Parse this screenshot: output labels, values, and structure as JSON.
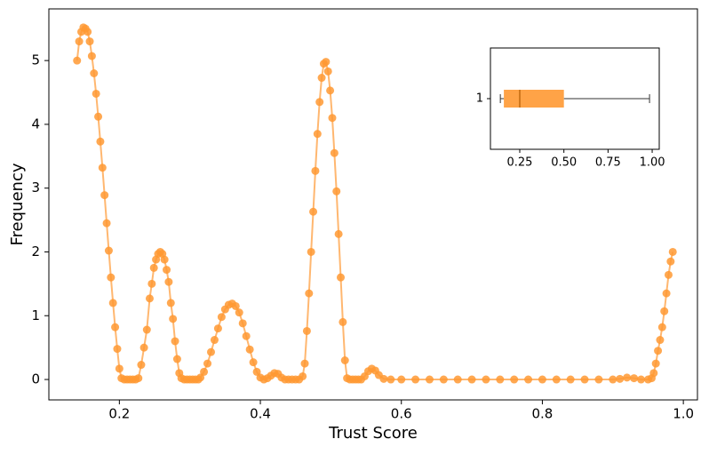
{
  "chart_data": [
    {
      "type": "line",
      "xlabel": "Trust Score",
      "ylabel": "Frequency",
      "color": "#ff9933",
      "x": [
        0.14,
        0.143,
        0.146,
        0.149,
        0.152,
        0.155,
        0.158,
        0.161,
        0.164,
        0.167,
        0.17,
        0.173,
        0.176,
        0.179,
        0.182,
        0.185,
        0.188,
        0.191,
        0.194,
        0.197,
        0.2,
        0.203,
        0.207,
        0.211,
        0.215,
        0.219,
        0.223,
        0.227,
        0.231,
        0.235,
        0.239,
        0.243,
        0.246,
        0.249,
        0.252,
        0.255,
        0.258,
        0.261,
        0.264,
        0.267,
        0.27,
        0.273,
        0.276,
        0.279,
        0.282,
        0.285,
        0.288,
        0.292,
        0.296,
        0.3,
        0.304,
        0.308,
        0.312,
        0.315,
        0.32,
        0.325,
        0.33,
        0.335,
        0.34,
        0.345,
        0.35,
        0.355,
        0.36,
        0.365,
        0.37,
        0.375,
        0.38,
        0.385,
        0.39,
        0.395,
        0.4,
        0.405,
        0.41,
        0.415,
        0.42,
        0.425,
        0.43,
        0.435,
        0.44,
        0.445,
        0.45,
        0.455,
        0.46,
        0.463,
        0.466,
        0.469,
        0.472,
        0.475,
        0.478,
        0.481,
        0.484,
        0.487,
        0.49,
        0.493,
        0.496,
        0.499,
        0.502,
        0.505,
        0.508,
        0.511,
        0.514,
        0.517,
        0.52,
        0.523,
        0.527,
        0.531,
        0.535,
        0.539,
        0.543,
        0.548,
        0.553,
        0.558,
        0.563,
        0.568,
        0.575,
        0.585,
        0.6,
        0.62,
        0.64,
        0.66,
        0.68,
        0.7,
        0.72,
        0.74,
        0.76,
        0.78,
        0.8,
        0.82,
        0.84,
        0.86,
        0.88,
        0.9,
        0.91,
        0.92,
        0.93,
        0.94,
        0.95,
        0.955,
        0.958,
        0.961,
        0.964,
        0.967,
        0.97,
        0.973,
        0.976,
        0.979,
        0.982,
        0.985
      ],
      "values": [
        5.0,
        5.3,
        5.45,
        5.52,
        5.5,
        5.45,
        5.3,
        5.07,
        4.8,
        4.48,
        4.12,
        3.73,
        3.32,
        2.89,
        2.45,
        2.02,
        1.6,
        1.2,
        0.82,
        0.48,
        0.17,
        0.02,
        0,
        0,
        0,
        0,
        0,
        0.02,
        0.23,
        0.5,
        0.78,
        1.27,
        1.5,
        1.75,
        1.88,
        1.97,
        2.0,
        1.97,
        1.88,
        1.72,
        1.53,
        1.2,
        0.95,
        0.6,
        0.32,
        0.1,
        0.02,
        0,
        0,
        0,
        0,
        0,
        0,
        0.03,
        0.12,
        0.25,
        0.43,
        0.62,
        0.8,
        0.98,
        1.1,
        1.17,
        1.19,
        1.15,
        1.05,
        0.88,
        0.68,
        0.47,
        0.27,
        0.12,
        0.03,
        0,
        0.02,
        0.06,
        0.1,
        0.09,
        0.03,
        0,
        0,
        0,
        0,
        0,
        0.05,
        0.25,
        0.76,
        1.35,
        2.0,
        2.63,
        3.27,
        3.85,
        4.35,
        4.73,
        4.95,
        4.98,
        4.83,
        4.53,
        4.1,
        3.55,
        2.95,
        2.28,
        1.6,
        0.9,
        0.3,
        0.02,
        0,
        0,
        0,
        0,
        0,
        0.05,
        0.13,
        0.17,
        0.14,
        0.07,
        0.01,
        0,
        0,
        0,
        0,
        0,
        0,
        0,
        0,
        0,
        0,
        0,
        0,
        0,
        0,
        0,
        0,
        0,
        0.01,
        0.03,
        0.02,
        0,
        0,
        0.02,
        0.1,
        0.25,
        0.45,
        0.62,
        0.82,
        1.07,
        1.35,
        1.64,
        1.85,
        2.0
      ],
      "xlim": [
        0.1,
        1.02
      ],
      "xticks": [
        0.2,
        0.4,
        0.6,
        0.8,
        {
          "value": 1.0,
          "label": "1.0"
        }
      ],
      "ylim": [
        -0.32,
        5.81
      ],
      "yticks": [
        0,
        1,
        2,
        3,
        4,
        5
      ]
    },
    {
      "type": "boxplot",
      "orientation": "horizontal",
      "color": "#ff9933",
      "categories": [
        "1"
      ],
      "whislo": [
        0.14
      ],
      "q1": [
        0.16
      ],
      "med": [
        0.25
      ],
      "q3": [
        0.5
      ],
      "whishi": [
        0.985
      ],
      "xlim": [
        0.084,
        1.04
      ],
      "xticks": [
        {
          "value": 0.25,
          "label": "0.25"
        },
        {
          "value": 0.5,
          "label": "0.50"
        },
        0.75,
        {
          "value": 1.0,
          "label": "1.00"
        }
      ]
    }
  ]
}
